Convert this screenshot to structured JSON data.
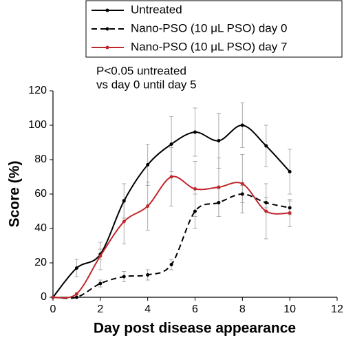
{
  "chart_data": {
    "type": "line",
    "xlabel": "Day post disease appearance",
    "ylabel": "Score (%)",
    "annotations": [
      "P<0.05 untreated",
      "vs day 0 until day 5"
    ],
    "x": [
      0,
      1,
      2,
      3,
      4,
      5,
      6,
      7,
      8,
      9,
      10
    ],
    "series": [
      {
        "name": "Untreated",
        "color": "#000000",
        "dashed": false,
        "values": [
          0,
          17,
          25,
          56,
          77,
          89,
          96,
          91,
          100,
          88,
          73
        ],
        "errors": [
          null,
          5,
          3,
          10,
          12,
          16,
          14,
          16,
          13,
          12,
          13
        ]
      },
      {
        "name": "Nano-PSO (10 μL PSO) day 0",
        "color": "#000000",
        "dashed": true,
        "values": [
          0,
          0,
          8,
          12,
          13,
          19,
          50,
          55,
          60,
          55,
          52
        ],
        "errors": [
          null,
          null,
          2,
          3,
          3,
          3,
          10,
          8,
          5,
          3,
          4
        ]
      },
      {
        "name": "Nano-PSO (10 μL PSO) day 7",
        "color": "#c0272d",
        "dashed": false,
        "values": [
          0,
          2,
          24,
          44,
          53,
          70,
          63,
          64,
          66,
          50,
          49
        ],
        "errors": [
          null,
          null,
          8,
          13,
          14,
          17,
          16,
          17,
          17,
          16,
          8
        ]
      }
    ],
    "xlim": [
      0,
      12
    ],
    "xticks": [
      0,
      2,
      4,
      6,
      8,
      10,
      12
    ],
    "ylim": [
      0,
      120
    ],
    "yticks": [
      0,
      20,
      40,
      60,
      80,
      100,
      120
    ],
    "legend": "top-right",
    "grid": false
  }
}
